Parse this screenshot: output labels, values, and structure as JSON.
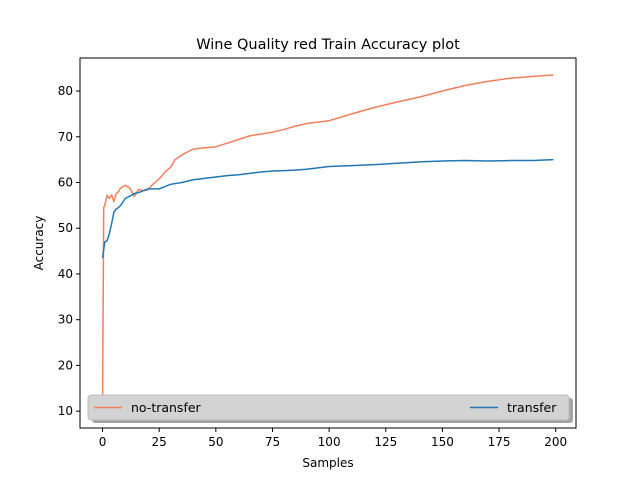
{
  "chart_data": {
    "type": "line",
    "title": "Wine Quality red Train Accuracy plot",
    "xlabel": "Samples",
    "ylabel": "Accuracy",
    "xlim": [
      -9.95,
      208.95
    ],
    "ylim": [
      6.32,
      87.22
    ],
    "xticks": [
      0,
      25,
      50,
      75,
      100,
      125,
      150,
      175,
      200
    ],
    "yticks": [
      10,
      20,
      30,
      40,
      50,
      60,
      70,
      80
    ],
    "grid": false,
    "legend": {
      "placement": "bottom",
      "entries": [
        "no-transfer",
        "transfer"
      ]
    },
    "series": [
      {
        "name": "no-transfer",
        "color": "#f07f5a",
        "x": [
          0,
          0.5,
          1,
          2,
          3,
          4,
          5,
          6,
          7,
          8,
          10,
          12,
          14,
          16,
          18,
          20,
          22,
          25,
          28,
          30,
          32,
          35,
          38,
          40,
          45,
          50,
          55,
          60,
          65,
          70,
          75,
          80,
          85,
          90,
          95,
          100,
          110,
          120,
          130,
          140,
          150,
          160,
          170,
          180,
          190,
          199
        ],
        "y": [
          10.2,
          54.5,
          55.0,
          57.2,
          56.5,
          57.3,
          55.8,
          57.5,
          58.0,
          58.8,
          59.4,
          58.8,
          57.0,
          58.5,
          58.2,
          58.4,
          59.5,
          60.8,
          62.5,
          63.3,
          65.0,
          66.0,
          66.8,
          67.3,
          67.6,
          67.8,
          68.6,
          69.4,
          70.2,
          70.6,
          71.0,
          71.6,
          72.3,
          72.9,
          73.2,
          73.5,
          75.0,
          76.4,
          77.6,
          78.7,
          80.0,
          81.2,
          82.1,
          82.8,
          83.2,
          83.5
        ]
      },
      {
        "name": "transfer",
        "color": "#1f77b4",
        "x": [
          0,
          1,
          2,
          3,
          4,
          5,
          6,
          7,
          8,
          10,
          12,
          14,
          16,
          18,
          20,
          25,
          30,
          35,
          40,
          45,
          50,
          55,
          60,
          65,
          70,
          75,
          80,
          85,
          90,
          95,
          100,
          110,
          120,
          130,
          140,
          150,
          160,
          170,
          180,
          190,
          199
        ],
        "y": [
          43.5,
          47.0,
          47.3,
          48.8,
          51.0,
          53.5,
          54.2,
          54.5,
          55.0,
          56.5,
          57.0,
          57.6,
          57.8,
          58.2,
          58.6,
          58.6,
          59.6,
          60.0,
          60.6,
          60.9,
          61.2,
          61.5,
          61.7,
          62.0,
          62.3,
          62.5,
          62.6,
          62.7,
          62.9,
          63.2,
          63.5,
          63.7,
          63.9,
          64.2,
          64.5,
          64.7,
          64.8,
          64.7,
          64.8,
          64.8,
          65.0
        ]
      }
    ]
  }
}
